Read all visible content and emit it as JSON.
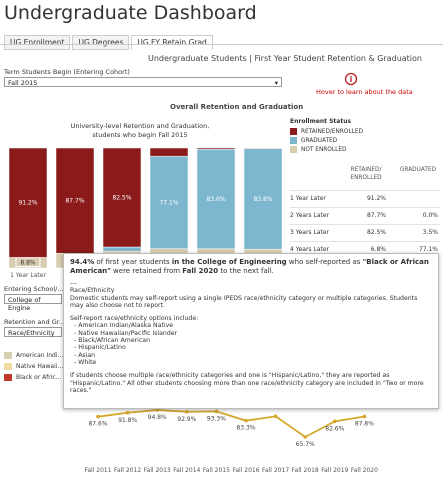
{
  "header": {
    "title": "Undergraduate Dashboard",
    "tabs": [
      "UG Enrollment",
      "UG Degrees",
      "UG FY Retain Grad"
    ],
    "active_tab": 2
  },
  "subtitle": "Undergraduate Students | First Year Student Retention & Graduation",
  "filters": {
    "term_label": "Term Students Begin (Entering Cohort)",
    "term_value": "Fall 2015",
    "school_label": "Entering School/...",
    "school_value": "College of Engine",
    "measure_label": "Retention and Gr...",
    "measure_value": "Race/Ethnicity"
  },
  "hover_hint": "Hover to learn about the data",
  "section_title": "Overall Retention and Graduation",
  "stacked_chart": {
    "type": "bar",
    "title_lines": [
      "University-level Retention and Graduation,",
      "students who begin Fall 2015"
    ],
    "categories": [
      "1 Year Later",
      null,
      null,
      null,
      null,
      null
    ],
    "legend_title": "Enrollment Status",
    "series": [
      {
        "name": "NOT ENROLLED",
        "color": "#d9cdb0",
        "values": [
          8.8,
          12.3,
          14.0,
          16.1,
          16.0,
          15.7
        ],
        "value_labels": [
          "8.8%",
          null,
          null,
          null,
          null,
          null
        ]
      },
      {
        "name": "GRADUATED",
        "color": "#7db6cf",
        "values": [
          0,
          0.0,
          3.5,
          77.1,
          83.0,
          83.8
        ],
        "value_labels": [
          null,
          null,
          null,
          "77.1%",
          "83.0%",
          "83.8%"
        ]
      },
      {
        "name": "RETAINED/ENROLLED",
        "color": "#8b1a1a",
        "values": [
          91.2,
          87.7,
          82.5,
          6.8,
          1.0,
          0.5
        ],
        "value_labels": [
          "91.2%",
          "87.7%",
          "82.5%",
          null,
          null,
          null
        ]
      }
    ],
    "legend_order": [
      2,
      1,
      0
    ]
  },
  "table": {
    "headers": [
      [
        "RETAINED/",
        "ENROLLED"
      ],
      [
        "GRADUATED"
      ]
    ],
    "rows": [
      [
        "1 Year Later",
        "91.2%",
        null
      ],
      [
        "2 Years Later",
        "87.7%",
        "0.0%"
      ],
      [
        "3 Years Later",
        "82.5%",
        "3.5%"
      ],
      [
        "4 Years Later",
        "6.8%",
        "77.1%"
      ]
    ]
  },
  "group_legend": [
    {
      "name": "American Indi...",
      "color": "#d9cdb0"
    },
    {
      "name": "Native Hawaii...",
      "color": "#f0dba0"
    },
    {
      "name": "Black or Afric...",
      "color": "#c0392b"
    }
  ],
  "line_chart": {
    "type": "line",
    "color": "#d4a62a",
    "categories": [
      "Fall 2011",
      "Fall 2012",
      "Fall 2013",
      "Fall 2014",
      "Fall 2015",
      "Fall 2016",
      "Fall 2017",
      "Fall 2018",
      "Fall 2019",
      "Fall 2020"
    ],
    "values": [
      87.6,
      91.8,
      94.8,
      92.9,
      93.3,
      83.3,
      88.0,
      65.7,
      82.6,
      87.8
    ],
    "value_labels": [
      "87.6%",
      "91.8%",
      "94.8%",
      "92.9%",
      "93.3%",
      "83.3%",
      null,
      "65.7%",
      "82.6%",
      "87.8%"
    ]
  },
  "tooltip": {
    "lead": [
      {
        "text": "94.4%",
        "bold": true
      },
      {
        "text": " of first year students ",
        "bold": false
      },
      {
        "text": "in the College of Engineering",
        "bold": true
      },
      {
        "text": " who self-reported as ",
        "bold": false
      },
      {
        "text": "\"Black or African American\"",
        "bold": true
      },
      {
        "text": " were retained from ",
        "bold": false
      },
      {
        "text": "Fall 2020",
        "bold": true
      },
      {
        "text": " to the next fall.",
        "bold": false
      }
    ],
    "separator": "---",
    "heading": "Race/Ethnicity",
    "intro": "Domestic students may self-report using a single IPEDS race/ethnicity category or multiple categories. Students may also choose not to report.",
    "options_title": "Self-report race/ethnicity options include:",
    "options": [
      "- American Indian/Alaska Native",
      "- Native Hawaiian/Pacific Islander",
      "- Black/African American",
      "- Hispanic/Latino",
      "- Asian",
      "- White"
    ],
    "footer": "If students choose multiple race/ethnicity categories and one is \"Hispanic/Latino,\" they are reported as \"Hispanic/Latino.\" All other students choosing more than one race/ethnicity category are included in \"Two or more races.\""
  }
}
